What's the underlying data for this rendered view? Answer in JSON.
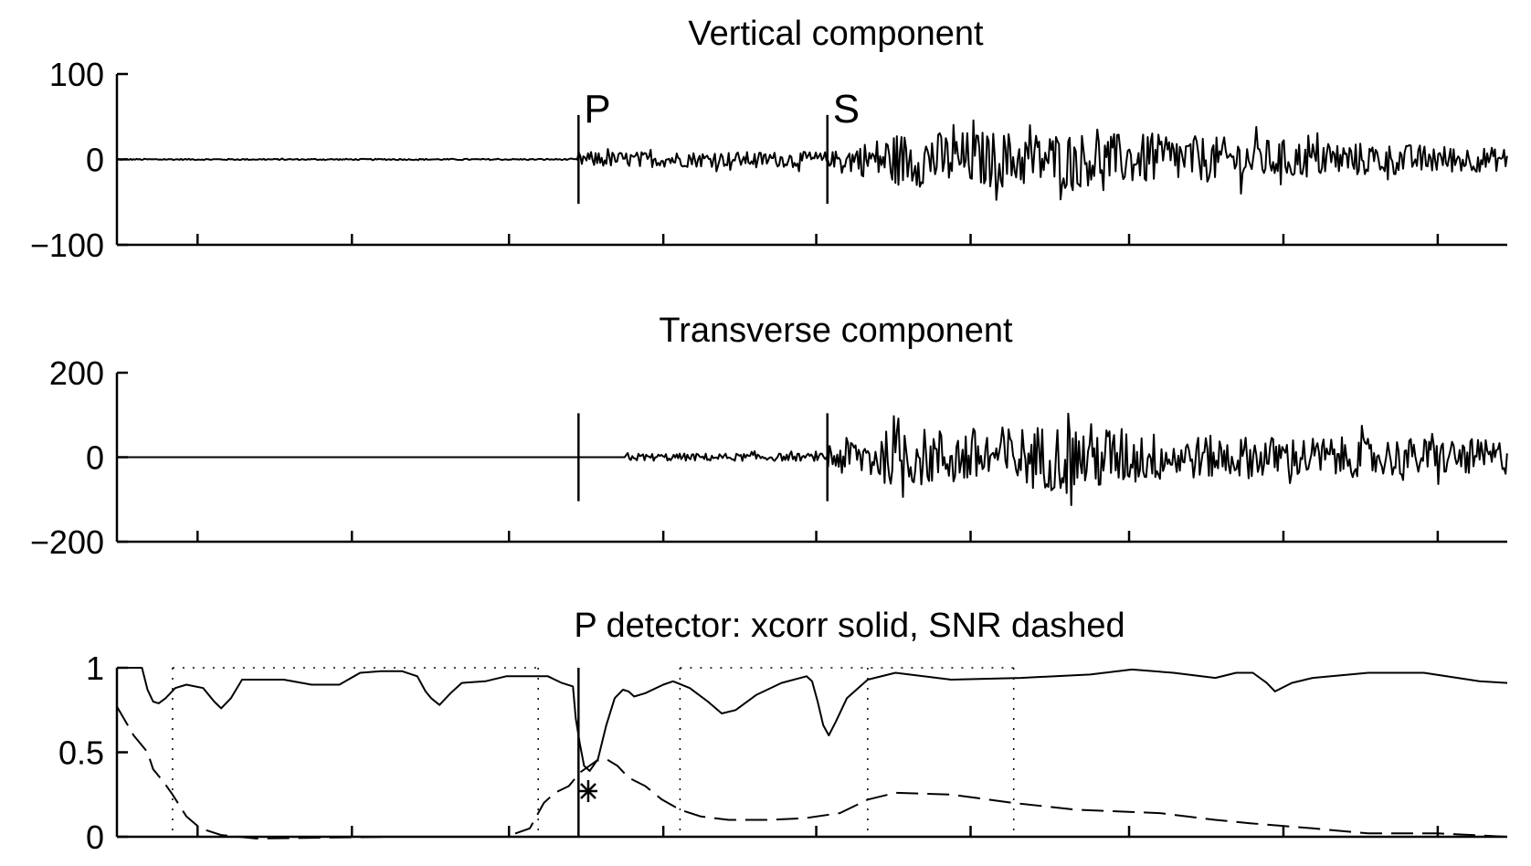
{
  "chart_data": [
    {
      "type": "line",
      "title": "Vertical component",
      "ylim": [
        -100,
        100
      ],
      "yticks": [
        100,
        0,
        -100
      ],
      "ytick_labels": [
        "100",
        "0",
        "−100"
      ],
      "xlim": [
        0,
        1000
      ],
      "xticks": [
        58,
        169,
        282,
        393,
        503,
        614,
        728,
        839,
        950
      ],
      "markers": [
        {
          "label": "P",
          "x": 332
        },
        {
          "label": "S",
          "x": 511
        }
      ],
      "series": [
        {
          "values": {
            "pre_event": {
              "x": [
                0,
                332
              ],
              "amplitude": 1
            },
            "p_coda": {
              "x": [
                332,
                511
              ],
              "amplitude": 12
            },
            "s_coda": {
              "x": [
                511,
                1000
              ],
              "amplitude_envelope": [
                [
                  511,
                  10
                ],
                [
                  560,
                  42
                ],
                [
                  620,
                  45
                ],
                [
                  700,
                  42
                ],
                [
                  760,
                  38
                ],
                [
                  850,
                  30
                ],
                [
                  950,
                  22
                ],
                [
                  1000,
                  18
                ]
              ]
            }
          }
        }
      ]
    },
    {
      "type": "line",
      "title": "Transverse component",
      "ylim": [
        -200,
        200
      ],
      "yticks": [
        200,
        0,
        -200
      ],
      "ytick_labels": [
        "200",
        "0",
        "−200"
      ],
      "xlim": [
        0,
        1000
      ],
      "xticks": [
        58,
        169,
        282,
        393,
        503,
        614,
        728,
        839,
        950
      ],
      "markers": [
        {
          "x": 332
        },
        {
          "x": 511
        }
      ],
      "series": [
        {
          "values": {
            "pre_event": {
              "x": [
                0,
                366
              ],
              "amplitude": 0
            },
            "p_coda": {
              "x": [
                366,
                511
              ],
              "amplitude": 12
            },
            "s_coda": {
              "x": [
                511,
                1000
              ],
              "amplitude_envelope": [
                [
                  511,
                  50
                ],
                [
                  560,
                  90
                ],
                [
                  620,
                  95
                ],
                [
                  700,
                  110
                ],
                [
                  760,
                  70
                ],
                [
                  850,
                  65
                ],
                [
                  950,
                  60
                ],
                [
                  1000,
                  55
                ]
              ]
            }
          }
        }
      ]
    },
    {
      "type": "line",
      "title": "P detector: xcorr solid, SNR dashed",
      "ylim": [
        0,
        1
      ],
      "yticks": [
        1,
        0.5,
        0
      ],
      "ytick_labels": [
        "1",
        "0.5",
        "0"
      ],
      "xlim": [
        0,
        1000
      ],
      "xticks": [
        58,
        169,
        282,
        393,
        503,
        614,
        728,
        839,
        950
      ],
      "markers": [
        {
          "x": 332
        }
      ],
      "dotted_vlines": [
        40,
        303,
        405,
        540,
        645
      ],
      "detection_point": {
        "x": 339,
        "y": 0.27
      },
      "series": [
        {
          "style": "solid",
          "values": [
            [
              0,
              1
            ],
            [
              18,
              1
            ],
            [
              22,
              0.87
            ],
            [
              26,
              0.8
            ],
            [
              30,
              0.79
            ],
            [
              35,
              0.82
            ],
            [
              42,
              0.88
            ],
            [
              50,
              0.9
            ],
            [
              62,
              0.88
            ],
            [
              70,
              0.8
            ],
            [
              75,
              0.76
            ],
            [
              82,
              0.82
            ],
            [
              90,
              0.93
            ],
            [
              120,
              0.93
            ],
            [
              140,
              0.9
            ],
            [
              160,
              0.9
            ],
            [
              175,
              0.97
            ],
            [
              190,
              0.98
            ],
            [
              205,
              0.98
            ],
            [
              216,
              0.95
            ],
            [
              222,
              0.86
            ],
            [
              226,
              0.82
            ],
            [
              232,
              0.78
            ],
            [
              240,
              0.85
            ],
            [
              248,
              0.91
            ],
            [
              265,
              0.92
            ],
            [
              280,
              0.95
            ],
            [
              297,
              0.95
            ],
            [
              310,
              0.95
            ],
            [
              320,
              0.91
            ],
            [
              328,
              0.89
            ],
            [
              330,
              0.7
            ],
            [
              333,
              0.55
            ],
            [
              336,
              0.42
            ],
            [
              340,
              0.39
            ],
            [
              346,
              0.46
            ],
            [
              352,
              0.66
            ],
            [
              358,
              0.82
            ],
            [
              364,
              0.87
            ],
            [
              368,
              0.86
            ],
            [
              372,
              0.83
            ],
            [
              380,
              0.85
            ],
            [
              393,
              0.9
            ],
            [
              400,
              0.92
            ],
            [
              412,
              0.88
            ],
            [
              425,
              0.8
            ],
            [
              435,
              0.73
            ],
            [
              445,
              0.75
            ],
            [
              460,
              0.84
            ],
            [
              478,
              0.91
            ],
            [
              496,
              0.95
            ],
            [
              500,
              0.92
            ],
            [
              504,
              0.8
            ],
            [
              508,
              0.66
            ],
            [
              512,
              0.6
            ],
            [
              517,
              0.68
            ],
            [
              525,
              0.82
            ],
            [
              540,
              0.93
            ],
            [
              560,
              0.97
            ],
            [
              600,
              0.93
            ],
            [
              650,
              0.94
            ],
            [
              700,
              0.96
            ],
            [
              730,
              0.99
            ],
            [
              760,
              0.97
            ],
            [
              790,
              0.94
            ],
            [
              805,
              0.97
            ],
            [
              817,
              0.97
            ],
            [
              827,
              0.91
            ],
            [
              833,
              0.86
            ],
            [
              845,
              0.91
            ],
            [
              860,
              0.94
            ],
            [
              900,
              0.97
            ],
            [
              940,
              0.97
            ],
            [
              980,
              0.92
            ],
            [
              1000,
              0.91
            ]
          ]
        },
        {
          "style": "dashed",
          "values": [
            [
              0,
              0.77
            ],
            [
              12,
              0.6
            ],
            [
              22,
              0.5
            ],
            [
              26,
              0.4
            ],
            [
              34,
              0.32
            ],
            [
              40,
              0.25
            ],
            [
              50,
              0.12
            ],
            [
              60,
              0.05
            ],
            [
              75,
              0.01
            ],
            [
              100,
              -0.01
            ],
            [
              200,
              0.0
            ],
            [
              235,
              0.0
            ],
            [
              280,
              0.0
            ],
            [
              297,
              0.05
            ],
            [
              307,
              0.2
            ],
            [
              315,
              0.26
            ],
            [
              325,
              0.3
            ],
            [
              333,
              0.38
            ],
            [
              345,
              0.45
            ],
            [
              352,
              0.46
            ],
            [
              360,
              0.42
            ],
            [
              368,
              0.35
            ],
            [
              380,
              0.3
            ],
            [
              392,
              0.22
            ],
            [
              405,
              0.16
            ],
            [
              420,
              0.12
            ],
            [
              440,
              0.1
            ],
            [
              470,
              0.1
            ],
            [
              495,
              0.11
            ],
            [
              520,
              0.14
            ],
            [
              540,
              0.22
            ],
            [
              560,
              0.26
            ],
            [
              600,
              0.25
            ],
            [
              645,
              0.2
            ],
            [
              690,
              0.16
            ],
            [
              750,
              0.14
            ],
            [
              790,
              0.1
            ],
            [
              815,
              0.08
            ],
            [
              860,
              0.05
            ],
            [
              900,
              0.02
            ],
            [
              950,
              0.02
            ],
            [
              1000,
              0.0
            ]
          ]
        }
      ]
    }
  ]
}
